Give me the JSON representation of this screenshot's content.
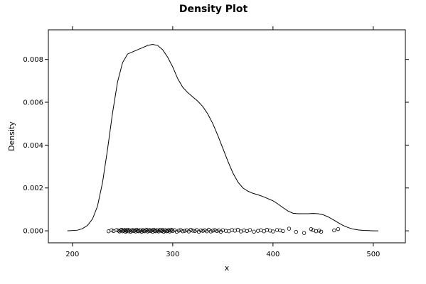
{
  "chart_data": {
    "type": "line",
    "title": "Density Plot",
    "xlabel": "x",
    "ylabel": "Density",
    "xlim": [
      176,
      532
    ],
    "ylim": [
      -0.00056,
      0.00938
    ],
    "x_ticks": [
      200,
      300,
      400,
      500
    ],
    "x_tick_labels": [
      "200",
      "300",
      "400",
      "500"
    ],
    "y_ticks": [
      0.0,
      0.002,
      0.004,
      0.006,
      0.008
    ],
    "y_tick_labels": [
      "0.000",
      "0.002",
      "0.004",
      "0.006",
      "0.008"
    ],
    "grid": false,
    "series": [
      {
        "kind": "density-line",
        "color": "#000000",
        "x": [
          195,
          205,
          210,
          215,
          220,
          225,
          230,
          235,
          240,
          245,
          250,
          255,
          260,
          265,
          270,
          275,
          280,
          285,
          290,
          295,
          300,
          305,
          310,
          315,
          320,
          325,
          330,
          335,
          340,
          345,
          350,
          355,
          360,
          365,
          370,
          375,
          380,
          385,
          390,
          395,
          400,
          405,
          410,
          415,
          420,
          425,
          430,
          435,
          440,
          445,
          450,
          455,
          460,
          465,
          470,
          475,
          480,
          485,
          490,
          495,
          500,
          505
        ],
        "y": [
          0.0,
          3e-05,
          0.0001,
          0.00025,
          0.00055,
          0.00115,
          0.00225,
          0.0038,
          0.0055,
          0.00695,
          0.00785,
          0.00825,
          0.00835,
          0.00845,
          0.00855,
          0.00865,
          0.0087,
          0.00865,
          0.00845,
          0.0081,
          0.00765,
          0.0071,
          0.0067,
          0.00645,
          0.00625,
          0.00605,
          0.0058,
          0.00545,
          0.005,
          0.00445,
          0.00385,
          0.00325,
          0.0027,
          0.00228,
          0.002,
          0.00185,
          0.00175,
          0.00168,
          0.0016,
          0.0015,
          0.0014,
          0.00125,
          0.00108,
          0.00092,
          0.00082,
          0.0008,
          0.0008,
          0.0008,
          0.00081,
          0.0008,
          0.00075,
          0.00065,
          0.00052,
          0.00038,
          0.00025,
          0.00015,
          8e-05,
          4e-05,
          2e-05,
          1e-05,
          0.0,
          0.0
        ]
      },
      {
        "kind": "rug-points",
        "color": "#000000",
        "x": [
          236,
          239,
          241,
          244,
          246,
          247,
          248,
          249,
          250,
          251,
          252,
          253,
          253,
          254,
          255,
          256,
          257,
          258,
          259,
          260,
          261,
          262,
          263,
          264,
          265,
          266,
          267,
          268,
          269,
          270,
          271,
          272,
          273,
          274,
          275,
          276,
          277,
          278,
          279,
          280,
          281,
          282,
          283,
          284,
          285,
          286,
          287,
          288,
          289,
          290,
          291,
          292,
          293,
          294,
          295,
          296,
          297,
          298,
          299,
          300,
          302,
          304,
          306,
          308,
          310,
          312,
          314,
          316,
          318,
          320,
          322,
          324,
          326,
          328,
          330,
          332,
          334,
          336,
          338,
          340,
          342,
          344,
          346,
          348,
          350,
          353,
          356,
          359,
          362,
          365,
          368,
          371,
          374,
          377,
          381,
          385,
          388,
          391,
          394,
          397,
          400,
          404,
          407,
          410,
          416,
          423,
          431,
          438,
          440,
          443,
          446,
          448,
          461,
          465
        ],
        "y": [
          -2e-05,
          3e-05,
          -1e-05,
          4e-05,
          1e-05,
          -3e-05,
          2e-05,
          5e-05,
          -2e-05,
          1e-05,
          4e-05,
          -4e-05,
          2e-05,
          0.0,
          5e-05,
          -2e-05,
          3e-05,
          -4e-05,
          1e-05,
          4e-05,
          -1e-05,
          2e-05,
          -3e-05,
          5e-05,
          0.0,
          -2e-05,
          3e-05,
          1e-05,
          -4e-05,
          4e-05,
          0.0,
          -2e-05,
          3e-05,
          5e-05,
          -3e-05,
          1e-05,
          4e-05,
          -1e-05,
          2e-05,
          -4e-05,
          5e-05,
          0.0,
          -2e-05,
          3e-05,
          1e-05,
          -3e-05,
          4e-05,
          2e-05,
          -1e-05,
          5e-05,
          -4e-05,
          1e-05,
          3e-05,
          -2e-05,
          0.0,
          4e-05,
          -3e-05,
          2e-05,
          5e-05,
          -1e-05,
          3e-05,
          -4e-05,
          1e-05,
          4e-05,
          -2e-05,
          0.0,
          3e-05,
          -3e-05,
          5e-05,
          1e-05,
          -1e-05,
          4e-05,
          -4e-05,
          2e-05,
          0.0,
          3e-05,
          -2e-05,
          5e-05,
          -3e-05,
          1e-05,
          4e-05,
          -1e-05,
          2e-05,
          -4e-05,
          3e-05,
          0.0,
          -2e-05,
          4e-05,
          1e-05,
          5e-05,
          -3e-05,
          2e-05,
          -1e-05,
          4e-05,
          -4e-05,
          0.0,
          3e-05,
          -2e-05,
          5e-05,
          1e-05,
          -3e-05,
          4e-05,
          2e-05,
          -1e-05,
          0.0001,
          -5e-05,
          -0.0001,
          8e-05,
          3e-05,
          -2e-05,
          1e-05,
          -4e-05,
          2e-05,
          8e-05
        ]
      }
    ]
  }
}
